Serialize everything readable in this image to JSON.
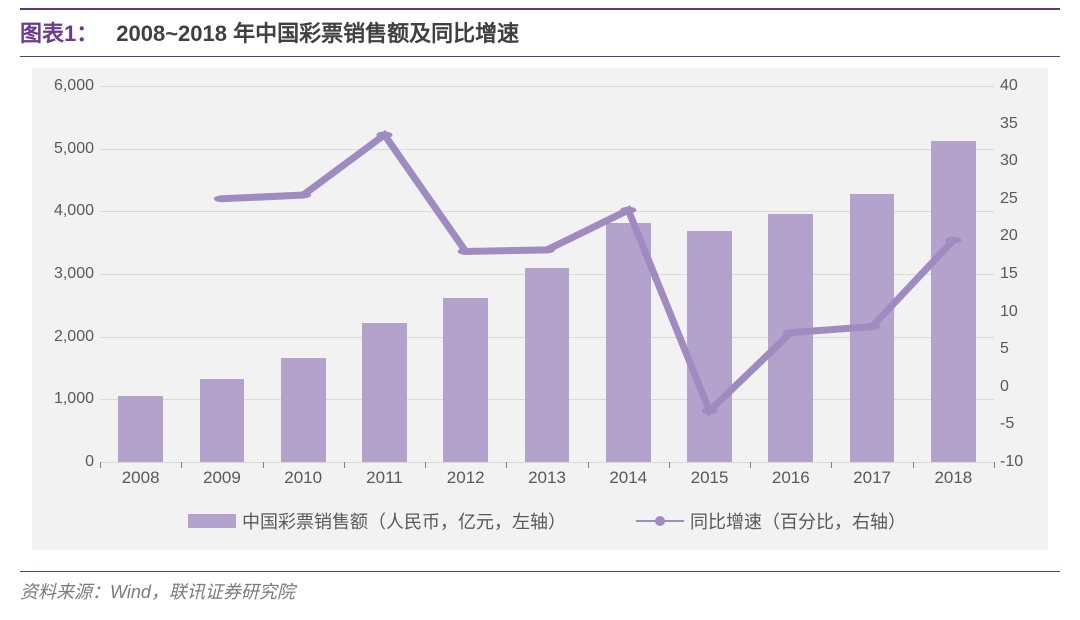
{
  "title": {
    "label": "图表1：",
    "text": "2008~2018 年中国彩票销售额及同比增速",
    "label_color": "#6a3b8a",
    "text_color": "#404040",
    "rule_color": "#5c3a7a",
    "fontsize": 22
  },
  "chart": {
    "type": "bar+line",
    "background_color": "#f2f2f2",
    "grid_color": "#d9d9d9",
    "categories": [
      "2008",
      "2009",
      "2010",
      "2011",
      "2012",
      "2013",
      "2014",
      "2015",
      "2016",
      "2017",
      "2018"
    ],
    "bars": {
      "name": "中国彩票销售额（人民币，亿元，左轴）",
      "values": [
        1060,
        1325,
        1660,
        2220,
        2620,
        3090,
        3820,
        3680,
        3950,
        4270,
        5115
      ],
      "color": "#b2a2cc",
      "bar_width_ratio": 0.55
    },
    "line": {
      "name": "同比增速（百分比，右轴）",
      "values": [
        null,
        25,
        25.5,
        33.5,
        18,
        18.2,
        23.5,
        -3.2,
        7.2,
        8,
        19.5
      ],
      "color": "#a08bc0",
      "marker_radius": 5,
      "line_width": 2.5
    },
    "y_left": {
      "min": 0,
      "max": 6000,
      "step": 1000,
      "labels": [
        "0",
        "1,000",
        "2,000",
        "3,000",
        "4,000",
        "5,000",
        "6,000"
      ]
    },
    "y_right": {
      "min": -10,
      "max": 40,
      "step": 5,
      "labels": [
        "-10",
        "-5",
        "0",
        "5",
        "10",
        "15",
        "20",
        "25",
        "30",
        "35",
        "40"
      ]
    },
    "axis_fontsize": 16,
    "x_fontsize": 17
  },
  "legend": {
    "bar_label": "中国彩票销售额（人民币，亿元，左轴）",
    "line_label": "同比增速（百分比，右轴）",
    "fontsize": 18
  },
  "source": {
    "prefix": "资料来源：",
    "text": "Wind，联讯证券研究院",
    "color": "#7a7a7a",
    "fontsize": 18
  }
}
